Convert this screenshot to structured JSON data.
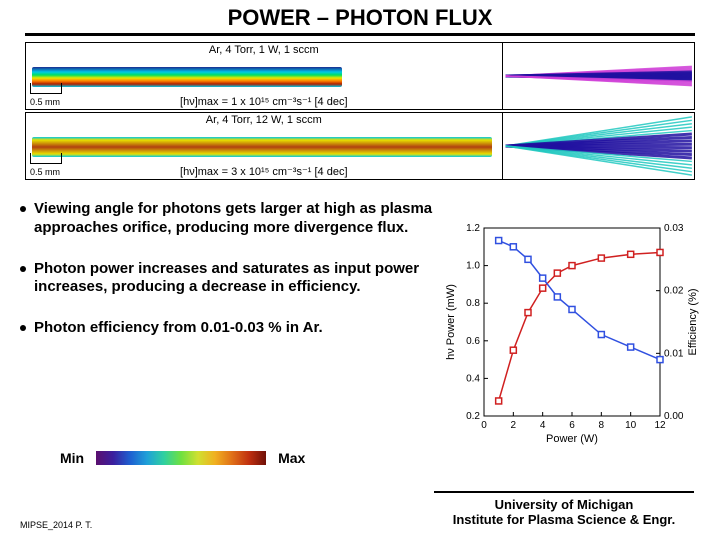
{
  "title": "POWER – PHOTON FLUX",
  "sim1": {
    "top_label": "Ar, 4 Torr, 1 W, 1 sccm",
    "bottom_label": "[hν]max = 1 x 10¹⁵ cm⁻³s⁻¹ [4 dec]",
    "scale_label": "0.5 mm",
    "plasma_gradient": "linear-gradient(180deg,#1a2a90 0%,#00c8e8 25%,#00e060 40%,#e8e800 55%,#ff8000 70%,#b02000 85%,#00c8e8 100%)",
    "plasma_width": 310,
    "ray_color1": "#2010a0",
    "ray_color2": "#d040d8"
  },
  "sim2": {
    "top_label": "Ar, 4 Torr, 12 W, 1 sccm",
    "bottom_label": "[hν]max = 3 x 10¹⁵ cm⁻³s⁻¹ [4 dec]",
    "scale_label": "0.5 mm",
    "plasma_gradient": "linear-gradient(180deg,#00c8e8 0%,#e8e000 15%,#b04010 50%,#e8e000 85%,#00c8e8 100%)",
    "plasma_width": 460,
    "ray_color1": "#2010a0",
    "ray_color2": "#20c8c0"
  },
  "bullets": [
    "Viewing angle for photons gets larger at high as plasma approaches orifice, producing more divergence flux.",
    "Photon power increases and saturates as input power increases, producing a decrease in efficiency.",
    "Photon efficiency from 0.01-0.03 % in Ar."
  ],
  "legend": {
    "min": "Min",
    "max": "Max"
  },
  "chart": {
    "xlabel": "Power (W)",
    "ylabel_left": "hν Power (mW)",
    "ylabel_right": "Efficiency (%)",
    "xlim": [
      0,
      12
    ],
    "xtick_step": 2,
    "ylim_left": [
      0.2,
      1.2
    ],
    "ytick_left_step": 0.2,
    "ylim_right": [
      0,
      0.03
    ],
    "ytick_right_step": 0.01,
    "series_power": {
      "color": "#d02020",
      "marker": "square",
      "x": [
        1,
        2,
        3,
        4,
        5,
        6,
        8,
        10,
        12
      ],
      "y": [
        0.28,
        0.55,
        0.75,
        0.88,
        0.96,
        1.0,
        1.04,
        1.06,
        1.07
      ]
    },
    "series_eff": {
      "color": "#3050e0",
      "marker": "square",
      "x": [
        1,
        2,
        3,
        4,
        5,
        6,
        8,
        10,
        12
      ],
      "y": [
        0.028,
        0.027,
        0.025,
        0.022,
        0.019,
        0.017,
        0.013,
        0.011,
        0.009
      ]
    },
    "background_color": "#ffffff",
    "axis_color": "#000000",
    "font_size": 10
  },
  "footer": {
    "left": "MIPSE_2014 P. T.",
    "right_line1": "University of Michigan",
    "right_line2": "Institute for Plasma Science & Engr."
  }
}
